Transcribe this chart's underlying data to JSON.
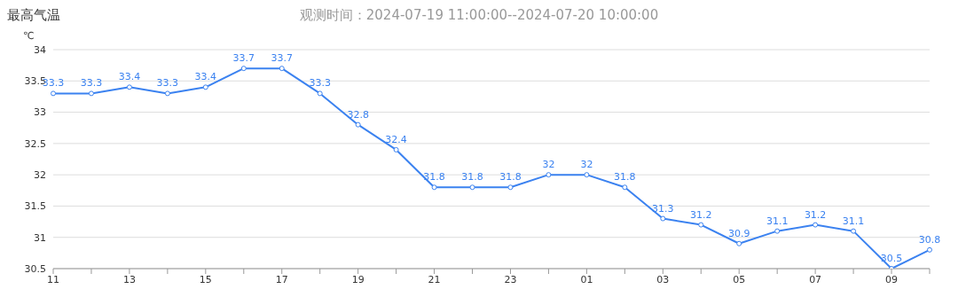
{
  "chart_data": {
    "type": "line",
    "title": "最高气温",
    "subtitle": "观测时间：2024-07-19 11:00:00--2024-07-20 10:00:00",
    "ylabel": "℃",
    "categories": [
      "11",
      null,
      "13",
      null,
      "15",
      null,
      "17",
      null,
      "19",
      null,
      "21",
      null,
      "23",
      null,
      "01",
      null,
      "03",
      null,
      "05",
      null,
      "07",
      null,
      "09",
      null
    ],
    "series": [
      {
        "color": "#3b82f0",
        "values": [
          33.3,
          33.3,
          33.4,
          33.3,
          33.4,
          33.7,
          33.7,
          33.3,
          32.8,
          32.4,
          31.8,
          31.8,
          31.8,
          32,
          32,
          31.8,
          31.3,
          31.2,
          30.9,
          31.1,
          31.2,
          31.1,
          30.5,
          30.8
        ]
      }
    ],
    "ylim": [
      30.5,
      34
    ],
    "yticks": [
      30.5,
      31,
      31.5,
      32,
      32.5,
      33,
      33.5,
      34
    ],
    "grid": "y",
    "marker": "circle",
    "line_style": "solid",
    "data_labels": true
  }
}
